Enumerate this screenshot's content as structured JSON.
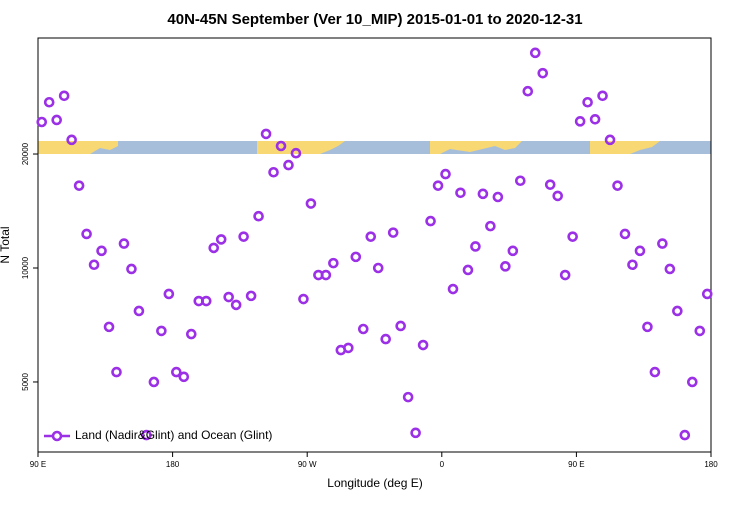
{
  "chart_data": {
    "type": "scatter",
    "title": "40N-45N September (Ver 10_MIP)   2015-01-01 to 2020-12-31",
    "x_label": "Longitude (deg E)",
    "y_label": "N Total",
    "log_y": true,
    "legend": "bottom-left",
    "xlim": [
      90,
      540
    ],
    "ylim": [
      3266,
      40500
    ],
    "xticks": [
      {
        "value": 90,
        "label": "90 E"
      },
      {
        "value": 180,
        "label": "180"
      },
      {
        "value": 270,
        "label": "90 W"
      },
      {
        "value": 360,
        "label": "0"
      },
      {
        "value": 450,
        "label": "90 E"
      },
      {
        "value": 540,
        "label": "180"
      }
    ],
    "yticks": [
      5000,
      10000,
      20000
    ],
    "series": [
      {
        "name": "Land (Nadir&Glint) and Ocean (Glint)",
        "color": "#9b30e6",
        "x": [
          92.5,
          97.5,
          102.5,
          107.5,
          112.5,
          117.5,
          122.5,
          127.5,
          132.5,
          137.5,
          142.5,
          147.5,
          152.5,
          157.5,
          162.5,
          167.5,
          172.5,
          177.5,
          182.5,
          187.5,
          192.5,
          197.5,
          202.5,
          207.5,
          212.5,
          217.5,
          222.5,
          227.5,
          232.5,
          237.5,
          242.5,
          247.5,
          252.5,
          257.5,
          262.5,
          267.5,
          272.5,
          277.5,
          282.5,
          287.5,
          292.5,
          297.5,
          302.5,
          307.5,
          312.5,
          317.5,
          322.5,
          327.5,
          332.5,
          337.5,
          342.5,
          347.5,
          352.5,
          357.5,
          362.5,
          367.5,
          372.5,
          377.5,
          382.5,
          387.5,
          392.5,
          397.5,
          402.5,
          407.5,
          412.5,
          417.5,
          422.5,
          427.5,
          432.5,
          437.5,
          442.5,
          447.5,
          452.5,
          457.5,
          462.5,
          467.5,
          472.5,
          477.5,
          482.5,
          487.5,
          492.5,
          497.5,
          502.5,
          507.5,
          512.5,
          517.5,
          522.5,
          527.5,
          532.5,
          537.5
        ],
        "values": [
          24300,
          27400,
          24600,
          28500,
          21800,
          16500,
          12300,
          10200,
          11100,
          6990,
          5310,
          11600,
          9940,
          7700,
          3620,
          5000,
          6820,
          8540,
          5310,
          5160,
          6690,
          8180,
          8180,
          11300,
          11900,
          8380,
          7990,
          12100,
          8440,
          13700,
          22600,
          17900,
          21000,
          18700,
          20100,
          8280,
          14800,
          9580,
          9580,
          10300,
          6070,
          6150,
          10700,
          6900,
          12100,
          10000,
          6490,
          12400,
          7030,
          4560,
          3670,
          6260,
          13300,
          16500,
          17700,
          8800,
          15800,
          9880,
          11400,
          15700,
          12900,
          15400,
          10100,
          11100,
          17000,
          29300,
          37000,
          32700,
          16600,
          15500,
          9580,
          12100,
          24400,
          27400,
          24700,
          28500,
          21800,
          16500,
          12300,
          10200,
          11100,
          6990,
          5310,
          11600,
          9940,
          7700,
          3620,
          5000,
          6820,
          8540
        ]
      }
    ]
  }
}
